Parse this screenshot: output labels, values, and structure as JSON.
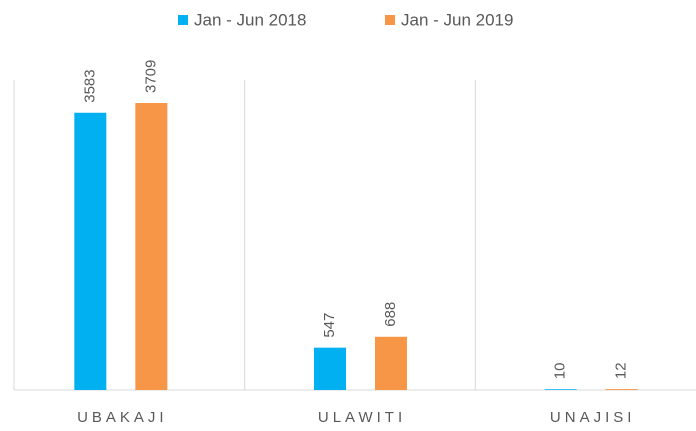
{
  "chart_data": {
    "type": "bar",
    "categories": [
      "UBAKAJI",
      "ULAWITI",
      "UNAJISI"
    ],
    "series": [
      {
        "name": "Jan - Jun 2018",
        "color": "#00b0f0",
        "values": [
          3583,
          547,
          10
        ]
      },
      {
        "name": "Jan - Jun 2019",
        "color": "#f79646",
        "values": [
          3709,
          688,
          12
        ]
      }
    ],
    "legend": "top"
  }
}
